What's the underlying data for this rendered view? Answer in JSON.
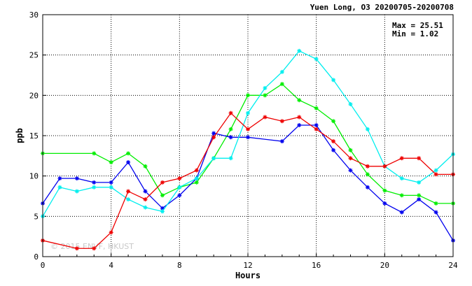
{
  "chart_data": {
    "type": "line",
    "title": "Yuen Long, O3 20200705-20200708",
    "xlabel": "Hours",
    "ylabel": "ppb",
    "xlim": [
      0,
      24
    ],
    "ylim": [
      0,
      30
    ],
    "xticks": [
      0,
      4,
      8,
      12,
      16,
      20,
      24
    ],
    "yticks": [
      0,
      5,
      10,
      15,
      20,
      25,
      30
    ],
    "grid": true,
    "stats": {
      "max": "Max = 25.51",
      "min": "Min =  1.02"
    },
    "watermark": "© 2015 ENVF, HKUST",
    "x": [
      0,
      1,
      2,
      3,
      4,
      5,
      6,
      7,
      8,
      9,
      10,
      11,
      12,
      13,
      14,
      15,
      16,
      17,
      18,
      19,
      20,
      21,
      22,
      23,
      24
    ],
    "series": [
      {
        "color": "#00ee00",
        "marker": "asterisk",
        "values": [
          12.8,
          null,
          null,
          12.8,
          11.7,
          12.8,
          11.2,
          7.6,
          8.6,
          9.2,
          12.2,
          15.8,
          20.0,
          20.0,
          21.4,
          19.4,
          18.4,
          16.8,
          13.2,
          10.2,
          8.2,
          7.6,
          7.6,
          6.6,
          6.6
        ]
      },
      {
        "color": "#0000ee",
        "marker": "asterisk",
        "values": [
          6.6,
          9.7,
          9.7,
          9.2,
          9.2,
          11.7,
          8.1,
          6.0,
          7.6,
          9.7,
          15.3,
          14.8,
          14.8,
          null,
          14.3,
          16.3,
          16.3,
          13.2,
          10.7,
          8.6,
          6.6,
          5.5,
          7.1,
          5.5,
          2.0
        ]
      },
      {
        "color": "#00eeee",
        "marker": "asterisk",
        "values": [
          5.0,
          8.6,
          8.1,
          8.6,
          8.6,
          7.1,
          6.1,
          5.6,
          8.6,
          9.7,
          12.2,
          12.2,
          17.8,
          20.9,
          22.9,
          25.51,
          24.5,
          21.9,
          18.9,
          15.8,
          11.2,
          9.7,
          9.2,
          10.7,
          12.7
        ]
      },
      {
        "color": "#ee0000",
        "marker": "asterisk",
        "values": [
          2.0,
          null,
          1.02,
          1.02,
          3.0,
          8.1,
          7.1,
          9.2,
          9.7,
          10.7,
          14.8,
          17.8,
          15.8,
          17.3,
          16.8,
          17.3,
          15.8,
          14.3,
          12.2,
          11.2,
          11.2,
          12.2,
          12.2,
          10.2,
          10.2
        ]
      }
    ]
  }
}
